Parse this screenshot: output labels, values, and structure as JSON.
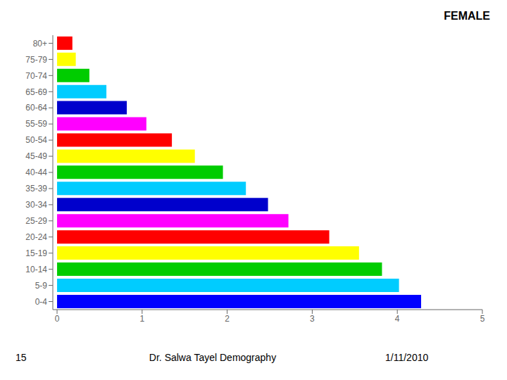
{
  "chart_data": {
    "type": "bar",
    "orientation": "horizontal",
    "title": "FEMALE",
    "categories": [
      "80+",
      "75-79",
      "70-74",
      "65-69",
      "60-64",
      "55-59",
      "50-54",
      "45-49",
      "40-44",
      "35-39",
      "30-34",
      "25-29",
      "20-24",
      "15-19",
      "10-14",
      "5-9",
      "0-4"
    ],
    "values": [
      0.18,
      0.22,
      0.38,
      0.58,
      0.82,
      1.05,
      1.35,
      1.62,
      1.95,
      2.22,
      2.48,
      2.72,
      3.2,
      3.55,
      3.82,
      4.02,
      4.28
    ],
    "colors": [
      "#ff0000",
      "#ffff00",
      "#00cc00",
      "#00ccff",
      "#0000cc",
      "#ff00ff",
      "#ff0000",
      "#ffff00",
      "#00cc00",
      "#00ccff",
      "#0000cc",
      "#ff00ff",
      "#ff0000",
      "#ffff00",
      "#00cc00",
      "#00ccff",
      "#0000ff"
    ],
    "xlim": [
      -0.05,
      5
    ],
    "xticks": [
      0,
      1,
      2,
      3,
      4,
      5
    ],
    "grid": false,
    "annotations": [
      "15",
      "Dr. Salwa Tayel Demography",
      "1/11/2010"
    ]
  }
}
